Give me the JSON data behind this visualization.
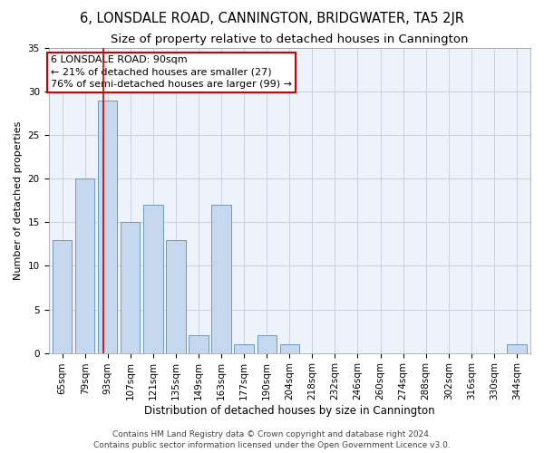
{
  "title": "6, LONSDALE ROAD, CANNINGTON, BRIDGWATER, TA5 2JR",
  "subtitle": "Size of property relative to detached houses in Cannington",
  "xlabel": "Distribution of detached houses by size in Cannington",
  "ylabel": "Number of detached properties",
  "categories": [
    "65sqm",
    "79sqm",
    "93sqm",
    "107sqm",
    "121sqm",
    "135sqm",
    "149sqm",
    "163sqm",
    "177sqm",
    "190sqm",
    "204sqm",
    "218sqm",
    "232sqm",
    "246sqm",
    "260sqm",
    "274sqm",
    "288sqm",
    "302sqm",
    "316sqm",
    "330sqm",
    "344sqm"
  ],
  "values": [
    13,
    20,
    29,
    15,
    17,
    13,
    2,
    17,
    1,
    2,
    1,
    0,
    0,
    0,
    0,
    0,
    0,
    0,
    0,
    0,
    1
  ],
  "bar_color": "#c5d8ee",
  "bar_edge_color": "#7099c0",
  "annotation_line1": "6 LONSDALE ROAD: 90sqm",
  "annotation_line2": "← 21% of detached houses are smaller (27)",
  "annotation_line3": "76% of semi-detached houses are larger (99) →",
  "annotation_box_color": "#ffffff",
  "annotation_box_edge_color": "#cc0000",
  "red_line_color": "#cc0000",
  "red_line_x": 1.82,
  "ylim": [
    0,
    35
  ],
  "yticks": [
    0,
    5,
    10,
    15,
    20,
    25,
    30,
    35
  ],
  "grid_color": "#c8d0e0",
  "background_color": "#eef2fa",
  "footer_line1": "Contains HM Land Registry data © Crown copyright and database right 2024.",
  "footer_line2": "Contains public sector information licensed under the Open Government Licence v3.0.",
  "title_fontsize": 10.5,
  "subtitle_fontsize": 9.5,
  "xlabel_fontsize": 8.5,
  "ylabel_fontsize": 8,
  "tick_fontsize": 7.5,
  "annotation_fontsize": 8,
  "footer_fontsize": 6.5
}
